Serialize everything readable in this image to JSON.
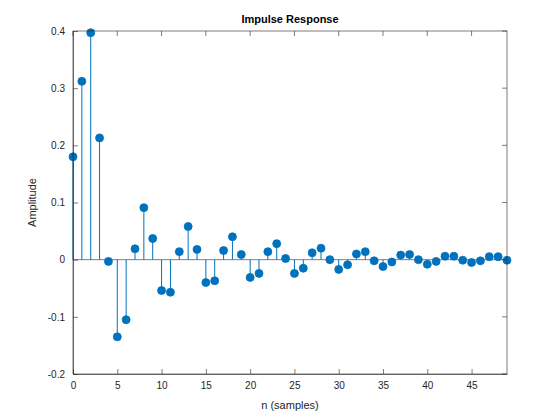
{
  "chart_data": {
    "type": "stem",
    "title": "Impulse Response",
    "x_label": "n (samples)",
    "y_label": "Amplitude",
    "x": [
      0,
      1,
      2,
      3,
      4,
      5,
      6,
      7,
      8,
      9,
      10,
      11,
      12,
      13,
      14,
      15,
      16,
      17,
      18,
      19,
      20,
      21,
      22,
      23,
      24,
      25,
      26,
      27,
      28,
      29,
      30,
      31,
      32,
      33,
      34,
      35,
      36,
      37,
      38,
      39,
      40,
      41,
      42,
      43,
      44,
      45,
      46,
      47,
      48,
      49
    ],
    "values": [
      0.18,
      0.312,
      0.397,
      0.213,
      -0.003,
      -0.135,
      -0.105,
      0.019,
      0.091,
      0.037,
      -0.054,
      -0.057,
      0.014,
      0.058,
      0.018,
      -0.04,
      -0.037,
      0.016,
      0.04,
      0.009,
      -0.031,
      -0.024,
      0.014,
      0.028,
      0.002,
      -0.024,
      -0.015,
      0.012,
      0.02,
      0.0,
      -0.017,
      -0.009,
      0.01,
      0.014,
      -0.002,
      -0.012,
      -0.004,
      0.008,
      0.009,
      0.0,
      -0.008,
      -0.003,
      0.006,
      0.006,
      -0.001,
      -0.005,
      -0.002,
      0.005,
      0.005,
      -0.001
    ],
    "color": "#0072bd",
    "marker": "circle",
    "xlim": [
      0,
      49
    ],
    "xticks": [
      0,
      5,
      10,
      15,
      20,
      25,
      30,
      35,
      40,
      45
    ],
    "ylim": [
      -0.2,
      0.4
    ],
    "yticks": [
      -0.2,
      -0.1,
      0,
      0.1,
      0.2,
      0.3,
      0.4
    ],
    "grid": false
  }
}
